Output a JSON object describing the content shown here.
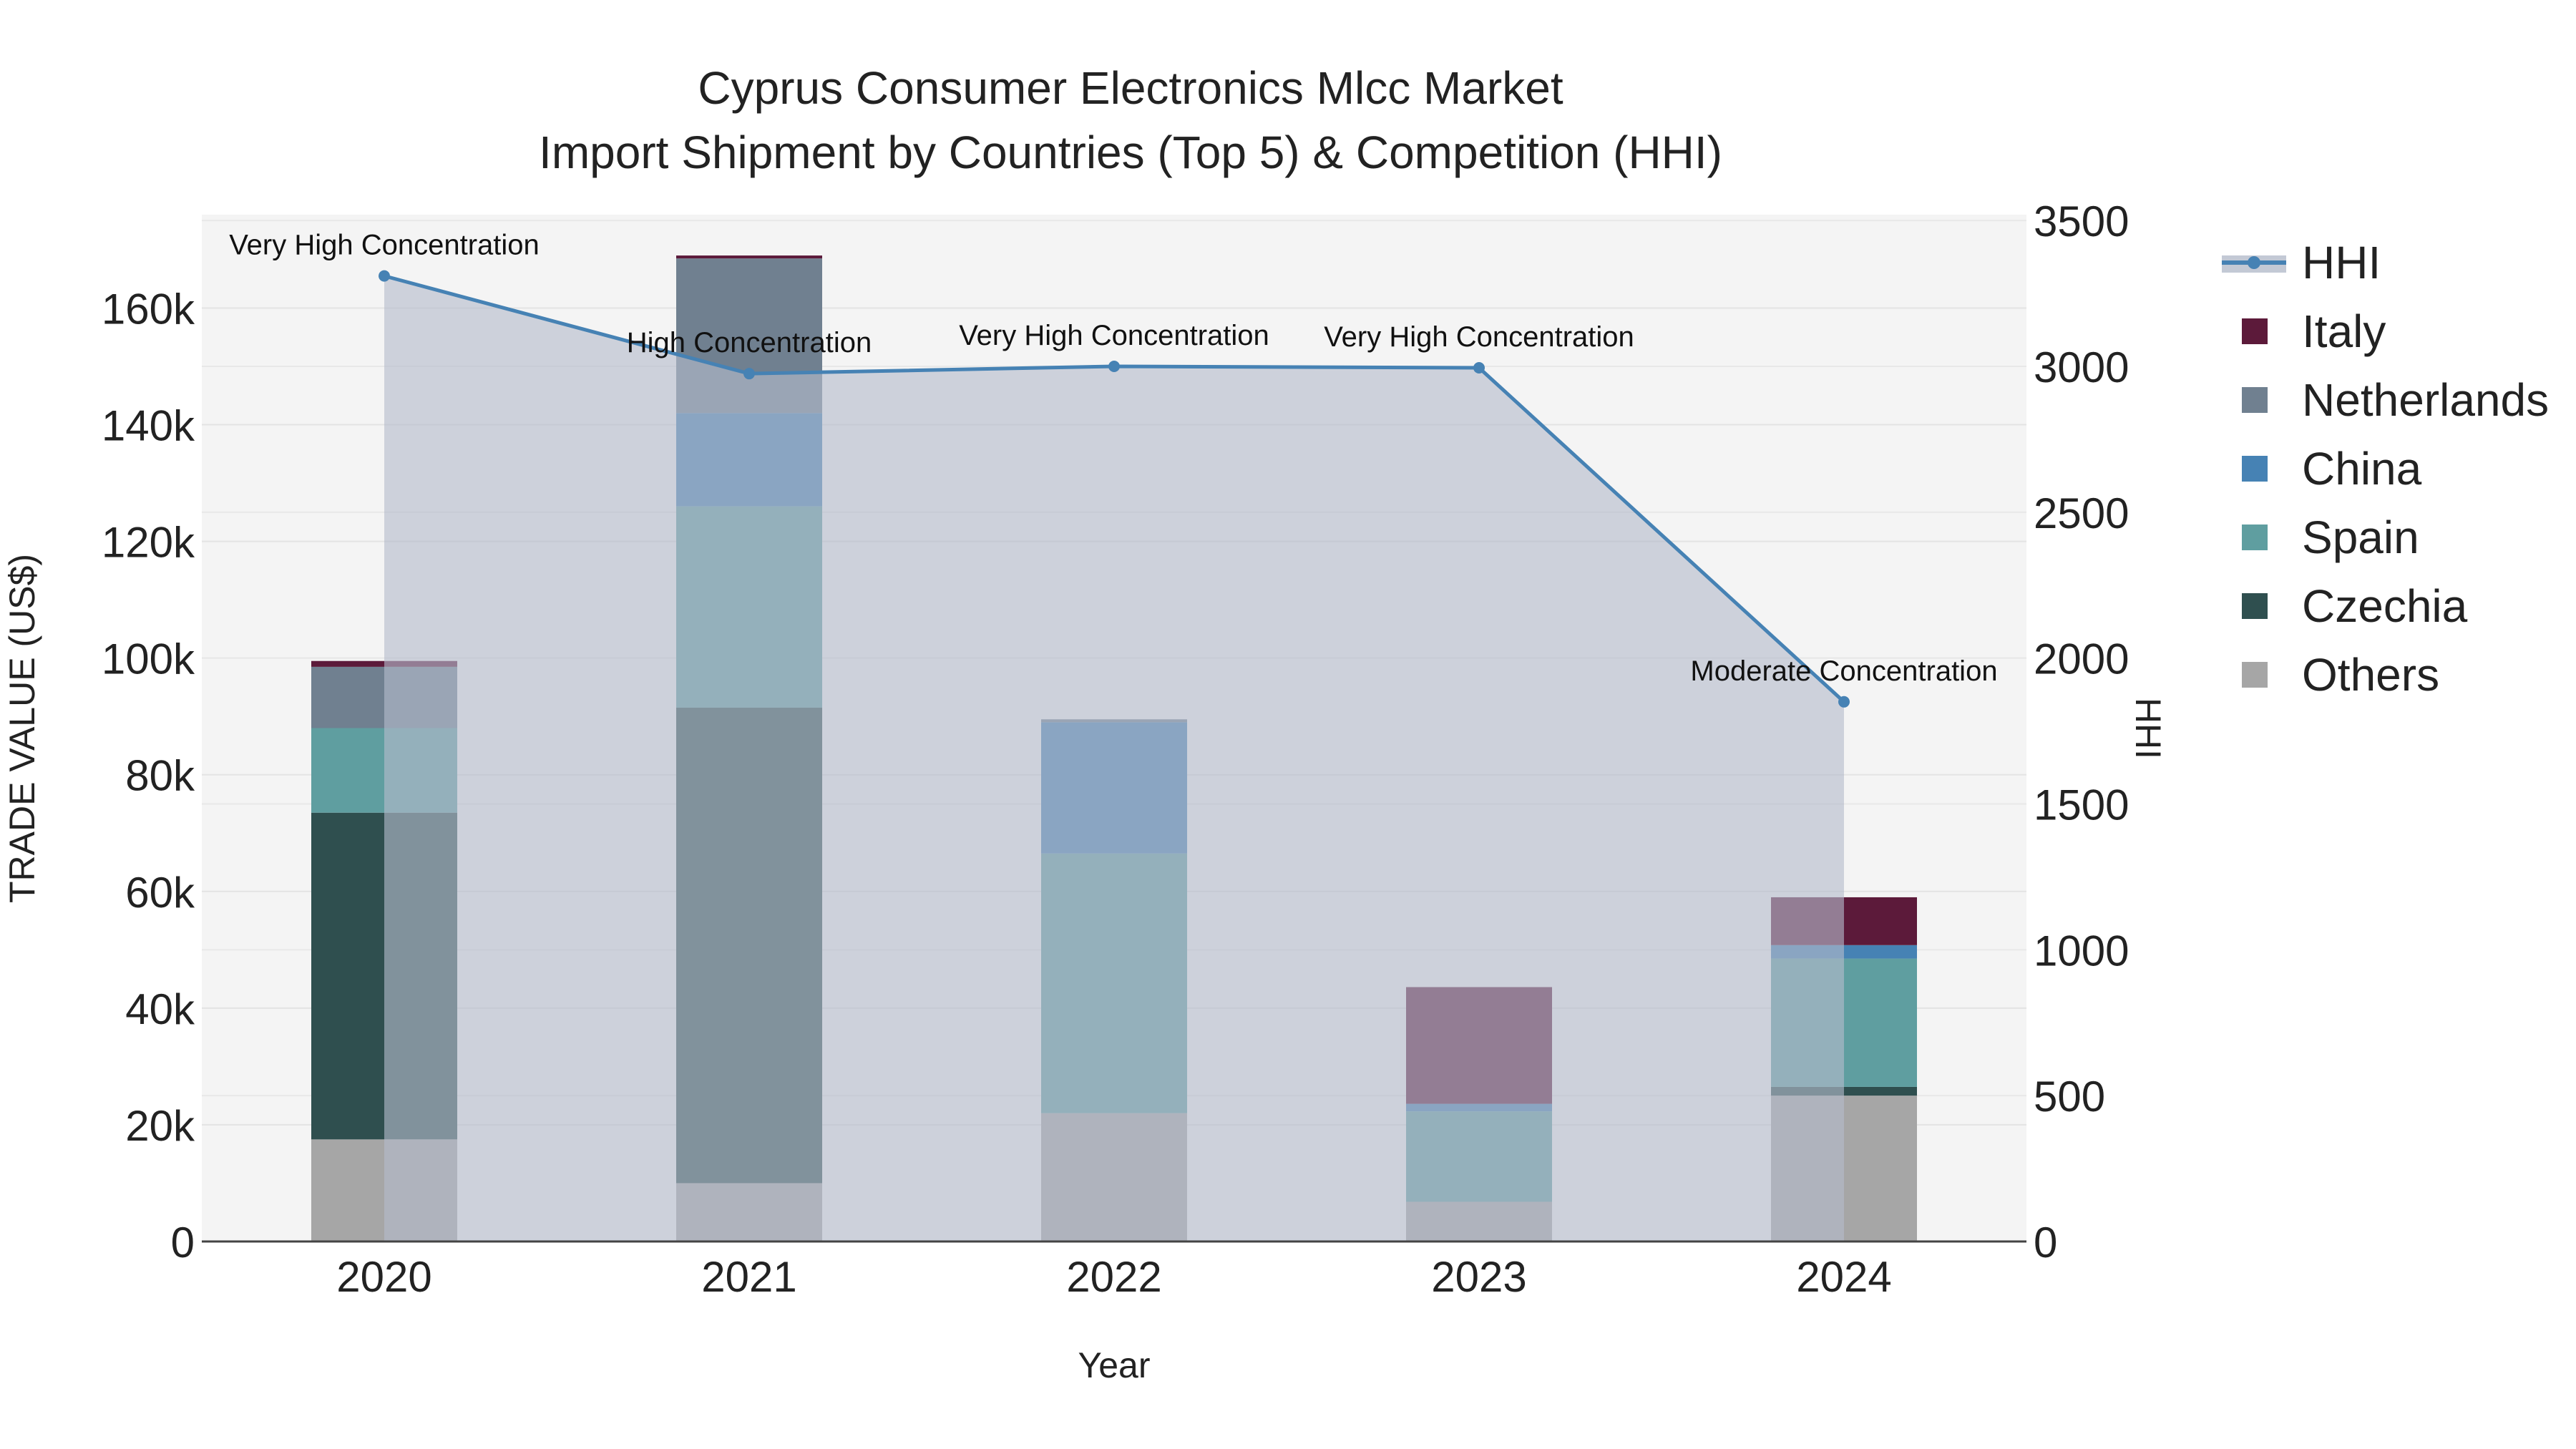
{
  "chart_data": {
    "type": "bar",
    "title_line1": "Cyprus Consumer Electronics Mlcc Market",
    "title_line2": "Import Shipment by Countries (Top 5) & Competition (HHI)",
    "xlabel": "Year",
    "ylabel": "TRADE VALUE (US$)",
    "y2label": "HHI",
    "categories": [
      "2020",
      "2021",
      "2022",
      "2023",
      "2024"
    ],
    "ylim": [
      0,
      176000
    ],
    "y2lim": [
      0,
      3520
    ],
    "yticks": [
      {
        "value": 0,
        "label": "0"
      },
      {
        "value": 20000,
        "label": "20k"
      },
      {
        "value": 40000,
        "label": "40k"
      },
      {
        "value": 60000,
        "label": "60k"
      },
      {
        "value": 80000,
        "label": "80k"
      },
      {
        "value": 100000,
        "label": "100k"
      },
      {
        "value": 120000,
        "label": "120k"
      },
      {
        "value": 140000,
        "label": "140k"
      },
      {
        "value": 160000,
        "label": "160k"
      }
    ],
    "y2ticks": [
      {
        "value": 0,
        "label": "0"
      },
      {
        "value": 500,
        "label": "500"
      },
      {
        "value": 1000,
        "label": "1000"
      },
      {
        "value": 1500,
        "label": "1500"
      },
      {
        "value": 2000,
        "label": "2000"
      },
      {
        "value": 2500,
        "label": "2500"
      },
      {
        "value": 3000,
        "label": "3000"
      },
      {
        "value": 3500,
        "label": "3500"
      }
    ],
    "series": [
      {
        "name": "Others",
        "color": "#a6a6a6",
        "values": [
          17500,
          10000,
          22000,
          6800,
          25000
        ]
      },
      {
        "name": "Czechia",
        "color": "#2f4f4f",
        "values": [
          56000,
          81500,
          0,
          0,
          1500
        ]
      },
      {
        "name": "Spain",
        "color": "#5f9ea0",
        "values": [
          14500,
          34500,
          44500,
          15500,
          22000
        ]
      },
      {
        "name": "China",
        "color": "#4682b4",
        "values": [
          0,
          16000,
          22500,
          1300,
          2300
        ]
      },
      {
        "name": "Netherlands",
        "color": "#708090",
        "values": [
          10500,
          26500,
          500,
          0,
          0
        ]
      },
      {
        "name": "Italy",
        "color": "#5c1a3a",
        "values": [
          1000,
          500,
          0,
          20000,
          8200
        ]
      }
    ],
    "hhi": {
      "name": "HHI",
      "color": "#4682b4",
      "values": [
        3310,
        2975,
        3000,
        2995,
        1850
      ],
      "labels": [
        "Very High Concentration",
        "High Concentration",
        "Very High Concentration",
        "Very High Concentration",
        "Moderate Concentration"
      ]
    },
    "legend": [
      "HHI",
      "Italy",
      "Netherlands",
      "China",
      "Spain",
      "Czechia",
      "Others"
    ],
    "legend_position": "right"
  }
}
